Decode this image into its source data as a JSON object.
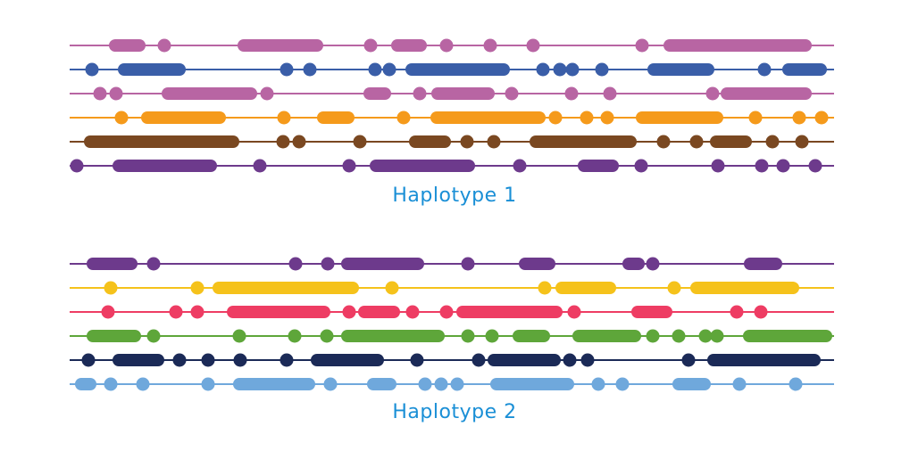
{
  "groups": [
    {
      "title": "Haplotype 1",
      "tracks": [
        {
          "color": "#b865a3",
          "segments": [
            [
              122,
              163
            ],
            [
              266,
              362
            ],
            [
              438,
              478
            ],
            [
              743,
              909
            ]
          ],
          "dots": [
            184,
            415,
            500,
            549,
            597,
            719
          ]
        },
        {
          "color": "#3a5ea8",
          "segments": [
            [
              132,
              208
            ],
            [
              454,
              571
            ],
            [
              725,
              800
            ],
            [
              876,
              926
            ]
          ],
          "dots": [
            103,
            321,
            347,
            420,
            436,
            608,
            627,
            641,
            674,
            856
          ]
        },
        {
          "color": "#b865a3",
          "segments": [
            [
              181,
              288
            ],
            [
              407,
              438
            ],
            [
              483,
              554
            ],
            [
              807,
              909
            ]
          ],
          "dots": [
            112,
            130,
            299,
            470,
            573,
            640,
            683,
            798
          ]
        },
        {
          "color": "#f59a1b",
          "segments": [
            [
              158,
              253
            ],
            [
              355,
              397
            ],
            [
              482,
              611
            ],
            [
              712,
              810
            ]
          ],
          "dots": [
            136,
            318,
            452,
            622,
            657,
            680,
            846,
            895,
            920
          ]
        },
        {
          "color": "#7a4821",
          "segments": [
            [
              94,
              268
            ],
            [
              458,
              505
            ],
            [
              593,
              713
            ],
            [
              795,
              842
            ]
          ],
          "dots": [
            317,
            335,
            403,
            523,
            553,
            743,
            780,
            865,
            898
          ]
        },
        {
          "color": "#6d3a8c",
          "segments": [
            [
              126,
              243
            ],
            [
              414,
              532
            ],
            [
              647,
              693
            ]
          ],
          "dots": [
            86,
            291,
            391,
            582,
            718,
            804,
            853,
            877,
            913
          ]
        }
      ]
    },
    {
      "title": "Haplotype 2",
      "tracks": [
        {
          "color": "#6d3a8c",
          "segments": [
            [
              97,
              154
            ],
            [
              382,
              475
            ],
            [
              581,
              622
            ],
            [
              697,
              722
            ],
            [
              833,
              876
            ]
          ],
          "dots": [
            172,
            331,
            367,
            524,
            731
          ]
        },
        {
          "color": "#f5c21b",
          "segments": [
            [
              238,
              402
            ],
            [
              622,
              690
            ],
            [
              773,
              895
            ]
          ],
          "dots": [
            124,
            221,
            439,
            610,
            755
          ]
        },
        {
          "color": "#ee3c63",
          "segments": [
            [
              254,
              370
            ],
            [
              401,
              448
            ],
            [
              511,
              630
            ],
            [
              707,
              753
            ]
          ],
          "dots": [
            121,
            197,
            221,
            391,
            462,
            500,
            643,
            825,
            852
          ]
        },
        {
          "color": "#5ea63a",
          "segments": [
            [
              97,
              158
            ],
            [
              382,
              498
            ],
            [
              574,
              616
            ],
            [
              641,
              718
            ],
            [
              832,
              932
            ]
          ],
          "dots": [
            172,
            268,
            330,
            366,
            524,
            551,
            731,
            760,
            790,
            803
          ]
        },
        {
          "color": "#1b2a57",
          "segments": [
            [
              126,
              184
            ],
            [
              348,
              430
            ],
            [
              546,
              628
            ],
            [
              792,
              919
            ]
          ],
          "dots": [
            99,
            201,
            233,
            269,
            321,
            467,
            536,
            638,
            658,
            771
          ]
        },
        {
          "color": "#6fa8dc",
          "segments": [
            [
              84,
              108
            ],
            [
              261,
              353
            ],
            [
              411,
              444
            ],
            [
              549,
              643
            ],
            [
              753,
              796
            ]
          ],
          "dots": [
            124,
            160,
            233,
            370,
            476,
            494,
            512,
            670,
            697,
            828,
            891
          ]
        }
      ]
    }
  ]
}
